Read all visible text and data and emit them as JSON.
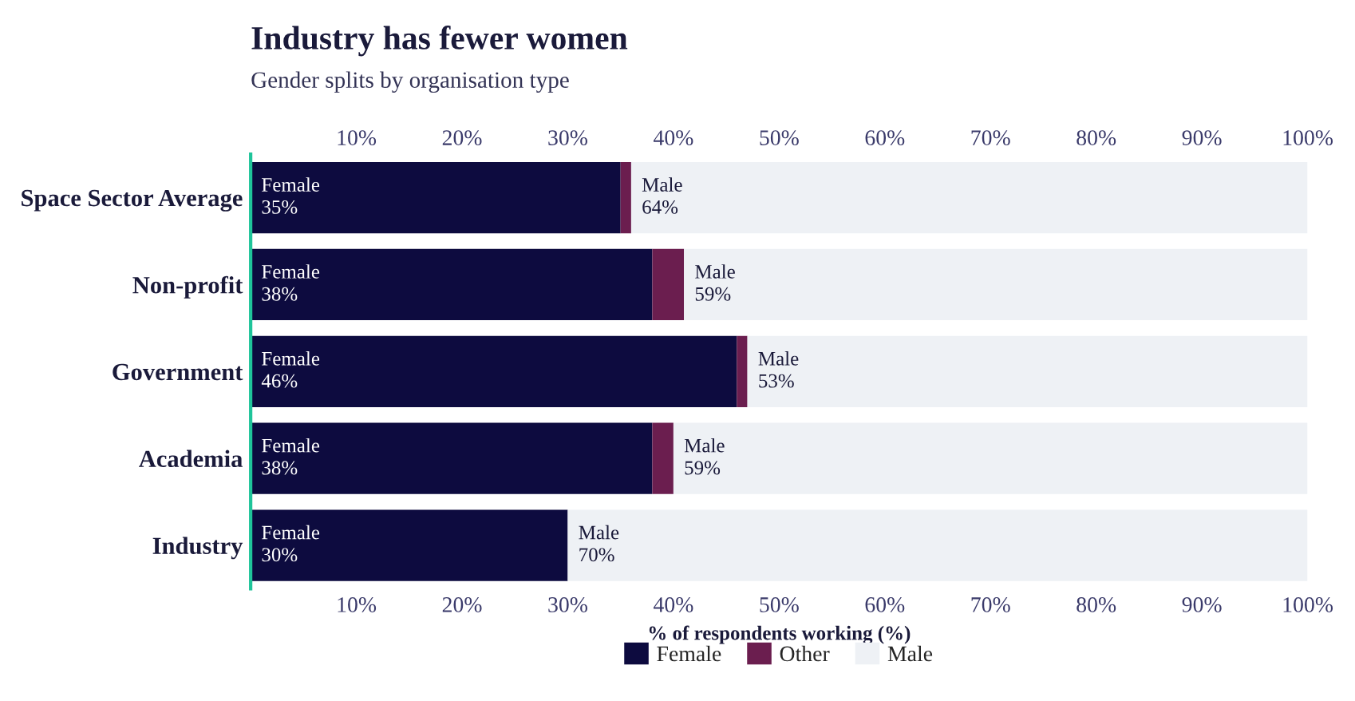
{
  "chart_data": {
    "type": "bar",
    "orientation": "horizontal",
    "stacked": true,
    "title": "Industry has fewer women",
    "subtitle": "Gender splits by organisation type",
    "xlabel": "% of respondents working (%)",
    "categories": [
      "Space Sector Average",
      "Non-profit",
      "Government",
      "Academia",
      "Industry"
    ],
    "series": [
      {
        "name": "Female",
        "color": "#0d0b3f",
        "values": [
          35,
          38,
          46,
          38,
          30
        ],
        "value_labels": [
          "Female\n35%",
          "Female\n38%",
          "Female\n46%",
          "Female\n38%",
          "Female\n30%"
        ]
      },
      {
        "name": "Other",
        "color": "#6b1e4f",
        "values": [
          1,
          3,
          1,
          2,
          0
        ]
      },
      {
        "name": "Male",
        "color": "#eef1f5",
        "values": [
          64,
          59,
          53,
          60,
          70
        ],
        "value_labels": [
          "Male\n64%",
          "Male\n59%",
          "Male\n53%",
          "Male\n59%",
          "Male\n70%"
        ]
      }
    ],
    "xlim": [
      0,
      100
    ],
    "xticks": [
      {
        "value": 10,
        "label": "10%"
      },
      {
        "value": 20,
        "label": "20%"
      },
      {
        "value": 30,
        "label": "30%"
      },
      {
        "value": 40,
        "label": "40%"
      },
      {
        "value": 50,
        "label": "50%"
      },
      {
        "value": 60,
        "label": "60%"
      },
      {
        "value": 70,
        "label": "70%"
      },
      {
        "value": 80,
        "label": "80%"
      },
      {
        "value": 90,
        "label": "90%"
      },
      {
        "value": 100,
        "label": "100%"
      }
    ],
    "x2lim": [
      0,
      100
    ],
    "x2ticks": [
      {
        "value": 10,
        "label": "10%"
      },
      {
        "value": 20,
        "label": "20%"
      },
      {
        "value": 30,
        "label": "30%"
      },
      {
        "value": 40,
        "label": "40%"
      },
      {
        "value": 50,
        "label": "50%"
      },
      {
        "value": 60,
        "label": "60%"
      },
      {
        "value": 70,
        "label": "70%"
      },
      {
        "value": 80,
        "label": "80%"
      },
      {
        "value": 90,
        "label": "90%"
      },
      {
        "value": 100,
        "label": "100%"
      }
    ],
    "grid": false,
    "legend": "bottom"
  }
}
